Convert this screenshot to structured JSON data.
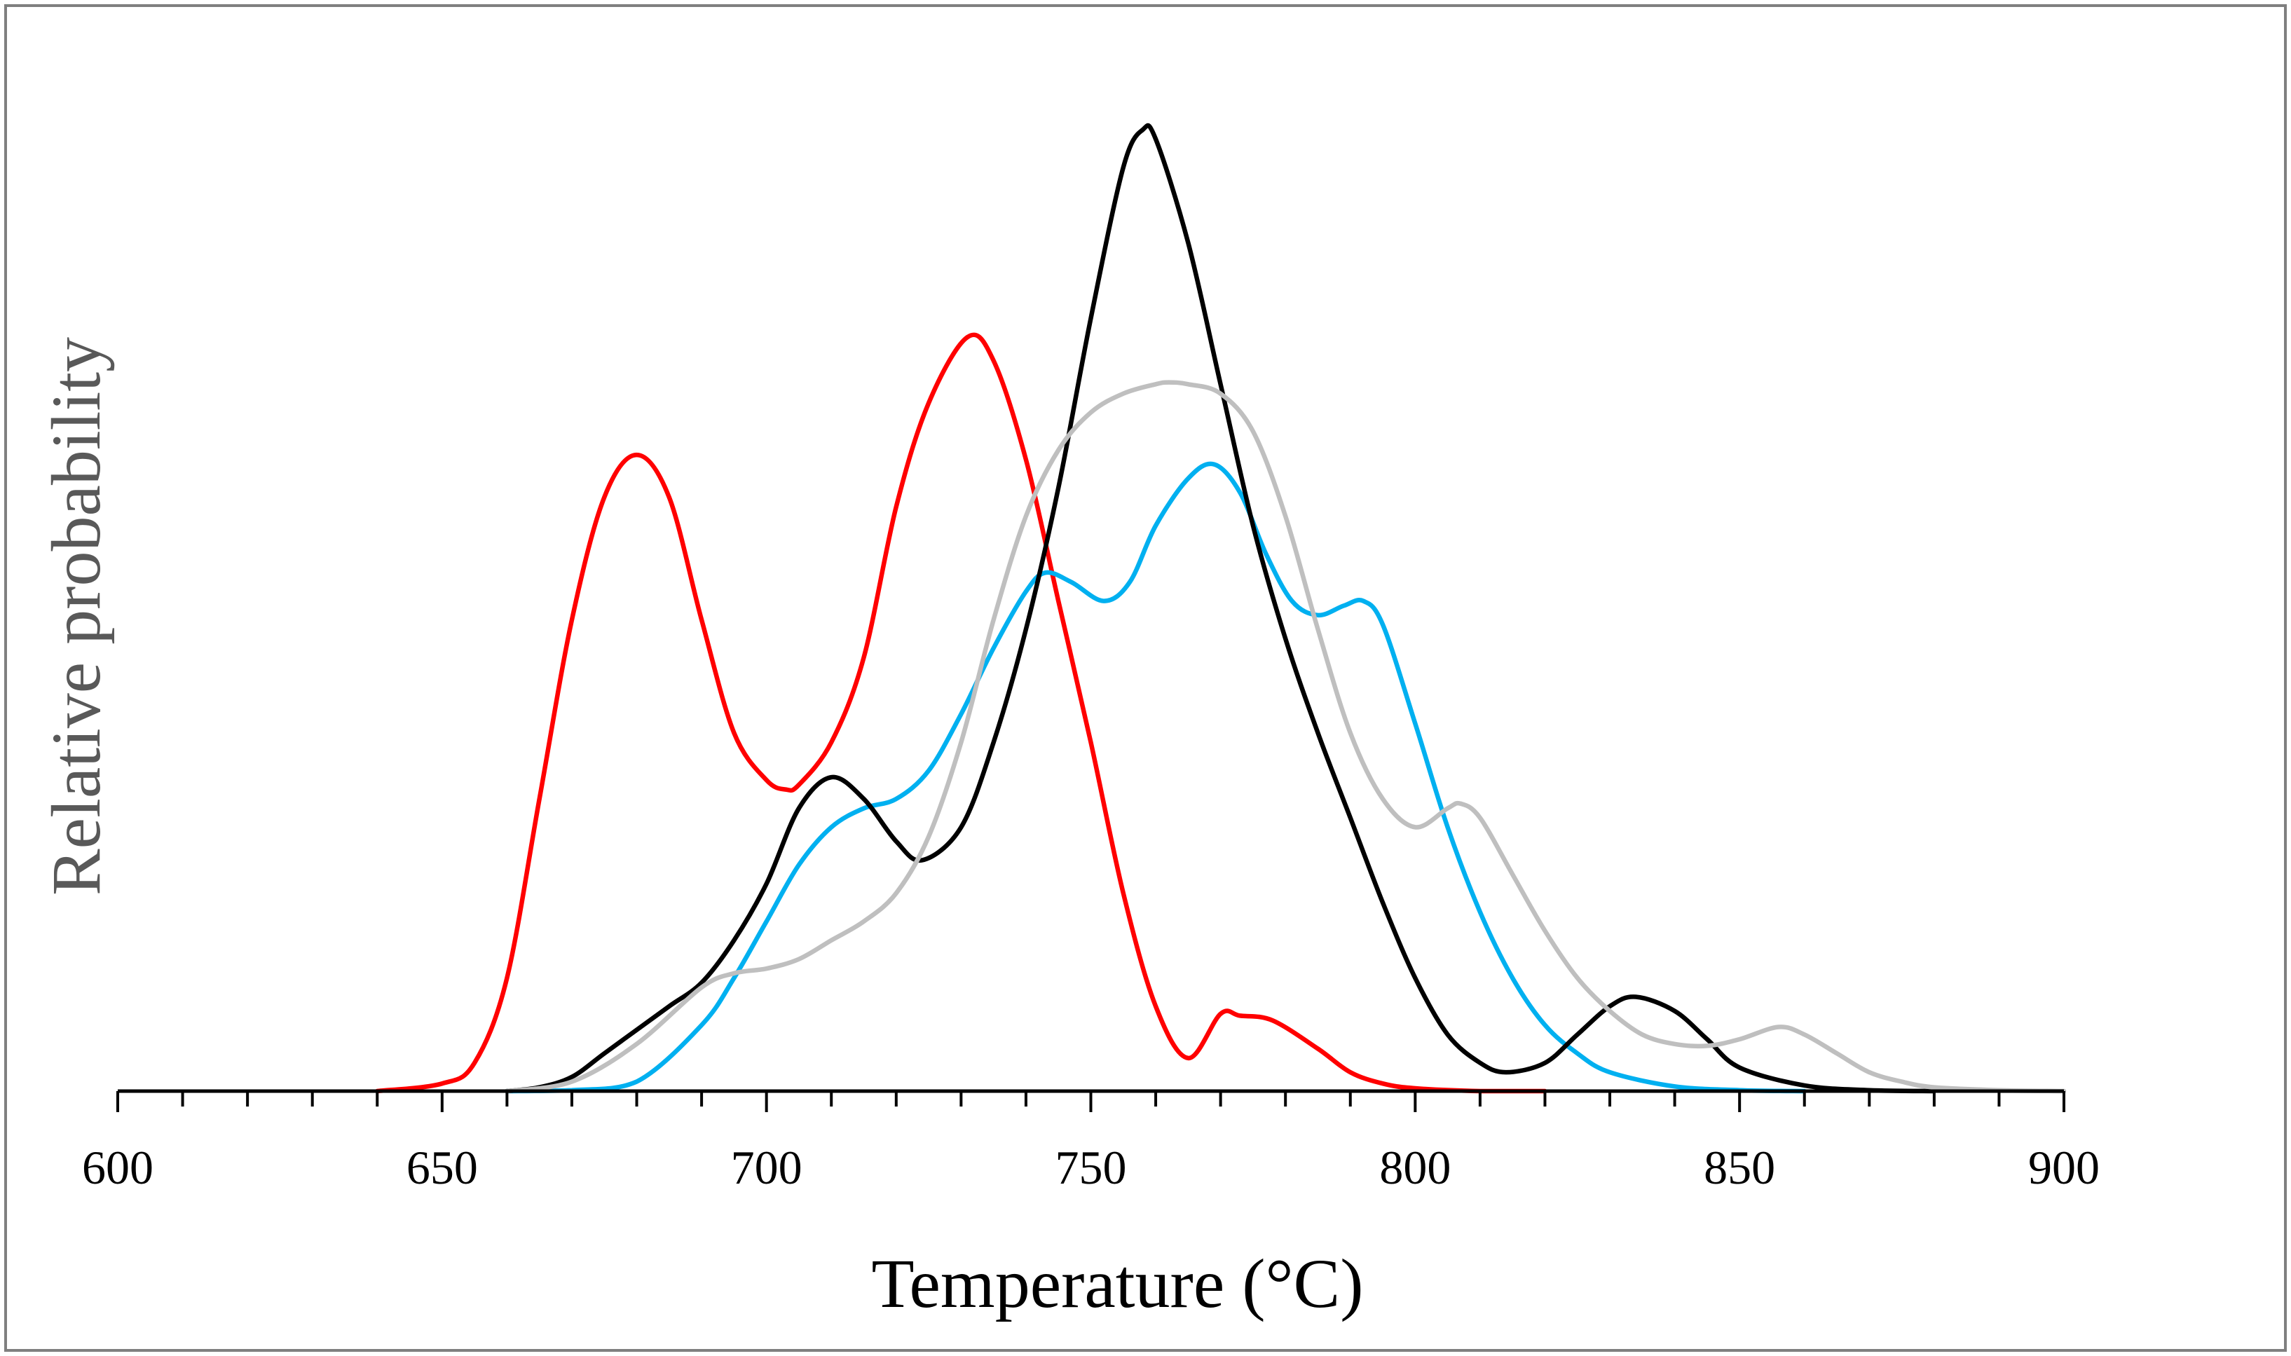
{
  "chart_data": {
    "type": "line",
    "title": "",
    "xlabel": "Temperature (°C)",
    "ylabel": "Relative probability",
    "xlim": [
      600,
      900
    ],
    "ylim": [
      0,
      1
    ],
    "x_major_ticks": [
      600,
      650,
      700,
      750,
      800,
      850,
      900
    ],
    "x_minor_step": 10,
    "y_axis_ticks_visible": false,
    "grid": false,
    "legend": "none",
    "frame_color": "#7f7f7f",
    "series": [
      {
        "name": "red",
        "color": "#ff0000",
        "x": [
          640,
          650,
          655,
          660,
          665,
          670,
          675,
          680,
          685,
          690,
          695,
          700,
          703,
          705,
          710,
          715,
          720,
          725,
          731,
          735,
          740,
          745,
          750,
          755,
          760,
          765,
          770,
          773,
          778,
          785,
          790,
          795,
          800,
          810,
          820
        ],
        "y": [
          0,
          0.008,
          0.03,
          0.12,
          0.31,
          0.5,
          0.63,
          0.675,
          0.63,
          0.5,
          0.38,
          0.33,
          0.32,
          0.325,
          0.37,
          0.46,
          0.62,
          0.73,
          0.8,
          0.775,
          0.67,
          0.52,
          0.37,
          0.21,
          0.09,
          0.035,
          0.082,
          0.08,
          0.075,
          0.045,
          0.02,
          0.008,
          0.003,
          0,
          0
        ]
      },
      {
        "name": "blue",
        "color": "#00b0f0",
        "x": [
          660,
          670,
          680,
          690,
          695,
          700,
          705,
          710,
          715,
          720,
          725,
          730,
          735,
          740,
          743,
          747,
          752,
          756,
          760,
          765,
          769,
          773,
          777,
          781,
          785,
          789,
          792,
          795,
          800,
          805,
          810,
          815,
          820,
          825,
          830,
          840,
          850,
          860
        ],
        "y": [
          0,
          0.001,
          0.01,
          0.07,
          0.12,
          0.18,
          0.24,
          0.28,
          0.3,
          0.31,
          0.34,
          0.4,
          0.47,
          0.53,
          0.55,
          0.54,
          0.52,
          0.54,
          0.6,
          0.65,
          0.665,
          0.635,
          0.57,
          0.52,
          0.505,
          0.515,
          0.52,
          0.495,
          0.39,
          0.28,
          0.19,
          0.12,
          0.07,
          0.04,
          0.02,
          0.005,
          0.001,
          0
        ]
      },
      {
        "name": "black",
        "color": "#000000",
        "x": [
          660,
          665,
          670,
          675,
          680,
          685,
          690,
          695,
          700,
          705,
          710,
          715,
          720,
          724,
          730,
          735,
          740,
          745,
          750,
          755,
          758,
          760,
          765,
          770,
          775,
          780,
          785,
          790,
          795,
          800,
          805,
          810,
          814,
          820,
          825,
          830,
          834,
          840,
          845,
          850,
          860,
          870,
          880
        ],
        "y": [
          0,
          0.004,
          0.015,
          0.04,
          0.065,
          0.09,
          0.115,
          0.16,
          0.22,
          0.3,
          0.333,
          0.31,
          0.265,
          0.245,
          0.28,
          0.37,
          0.49,
          0.64,
          0.82,
          0.98,
          1.02,
          1.01,
          0.9,
          0.75,
          0.6,
          0.48,
          0.38,
          0.29,
          0.2,
          0.12,
          0.06,
          0.03,
          0.02,
          0.03,
          0.06,
          0.09,
          0.1,
          0.085,
          0.055,
          0.025,
          0.006,
          0.001,
          0
        ]
      },
      {
        "name": "gray",
        "color": "#bfbfbf",
        "x": [
          660,
          670,
          680,
          690,
          695,
          700,
          705,
          710,
          715,
          720,
          725,
          730,
          735,
          740,
          745,
          750,
          755,
          760,
          762,
          765,
          770,
          775,
          780,
          785,
          790,
          795,
          800,
          805,
          807,
          810,
          815,
          820,
          825,
          830,
          835,
          840,
          845,
          850,
          856,
          860,
          865,
          870,
          875,
          880,
          890,
          900
        ],
        "y": [
          0,
          0.01,
          0.05,
          0.11,
          0.125,
          0.13,
          0.14,
          0.16,
          0.18,
          0.21,
          0.27,
          0.37,
          0.5,
          0.61,
          0.68,
          0.72,
          0.74,
          0.75,
          0.752,
          0.75,
          0.74,
          0.7,
          0.61,
          0.49,
          0.38,
          0.31,
          0.28,
          0.3,
          0.305,
          0.29,
          0.23,
          0.17,
          0.12,
          0.085,
          0.06,
          0.05,
          0.048,
          0.055,
          0.068,
          0.06,
          0.04,
          0.02,
          0.01,
          0.004,
          0.001,
          0
        ]
      }
    ]
  }
}
